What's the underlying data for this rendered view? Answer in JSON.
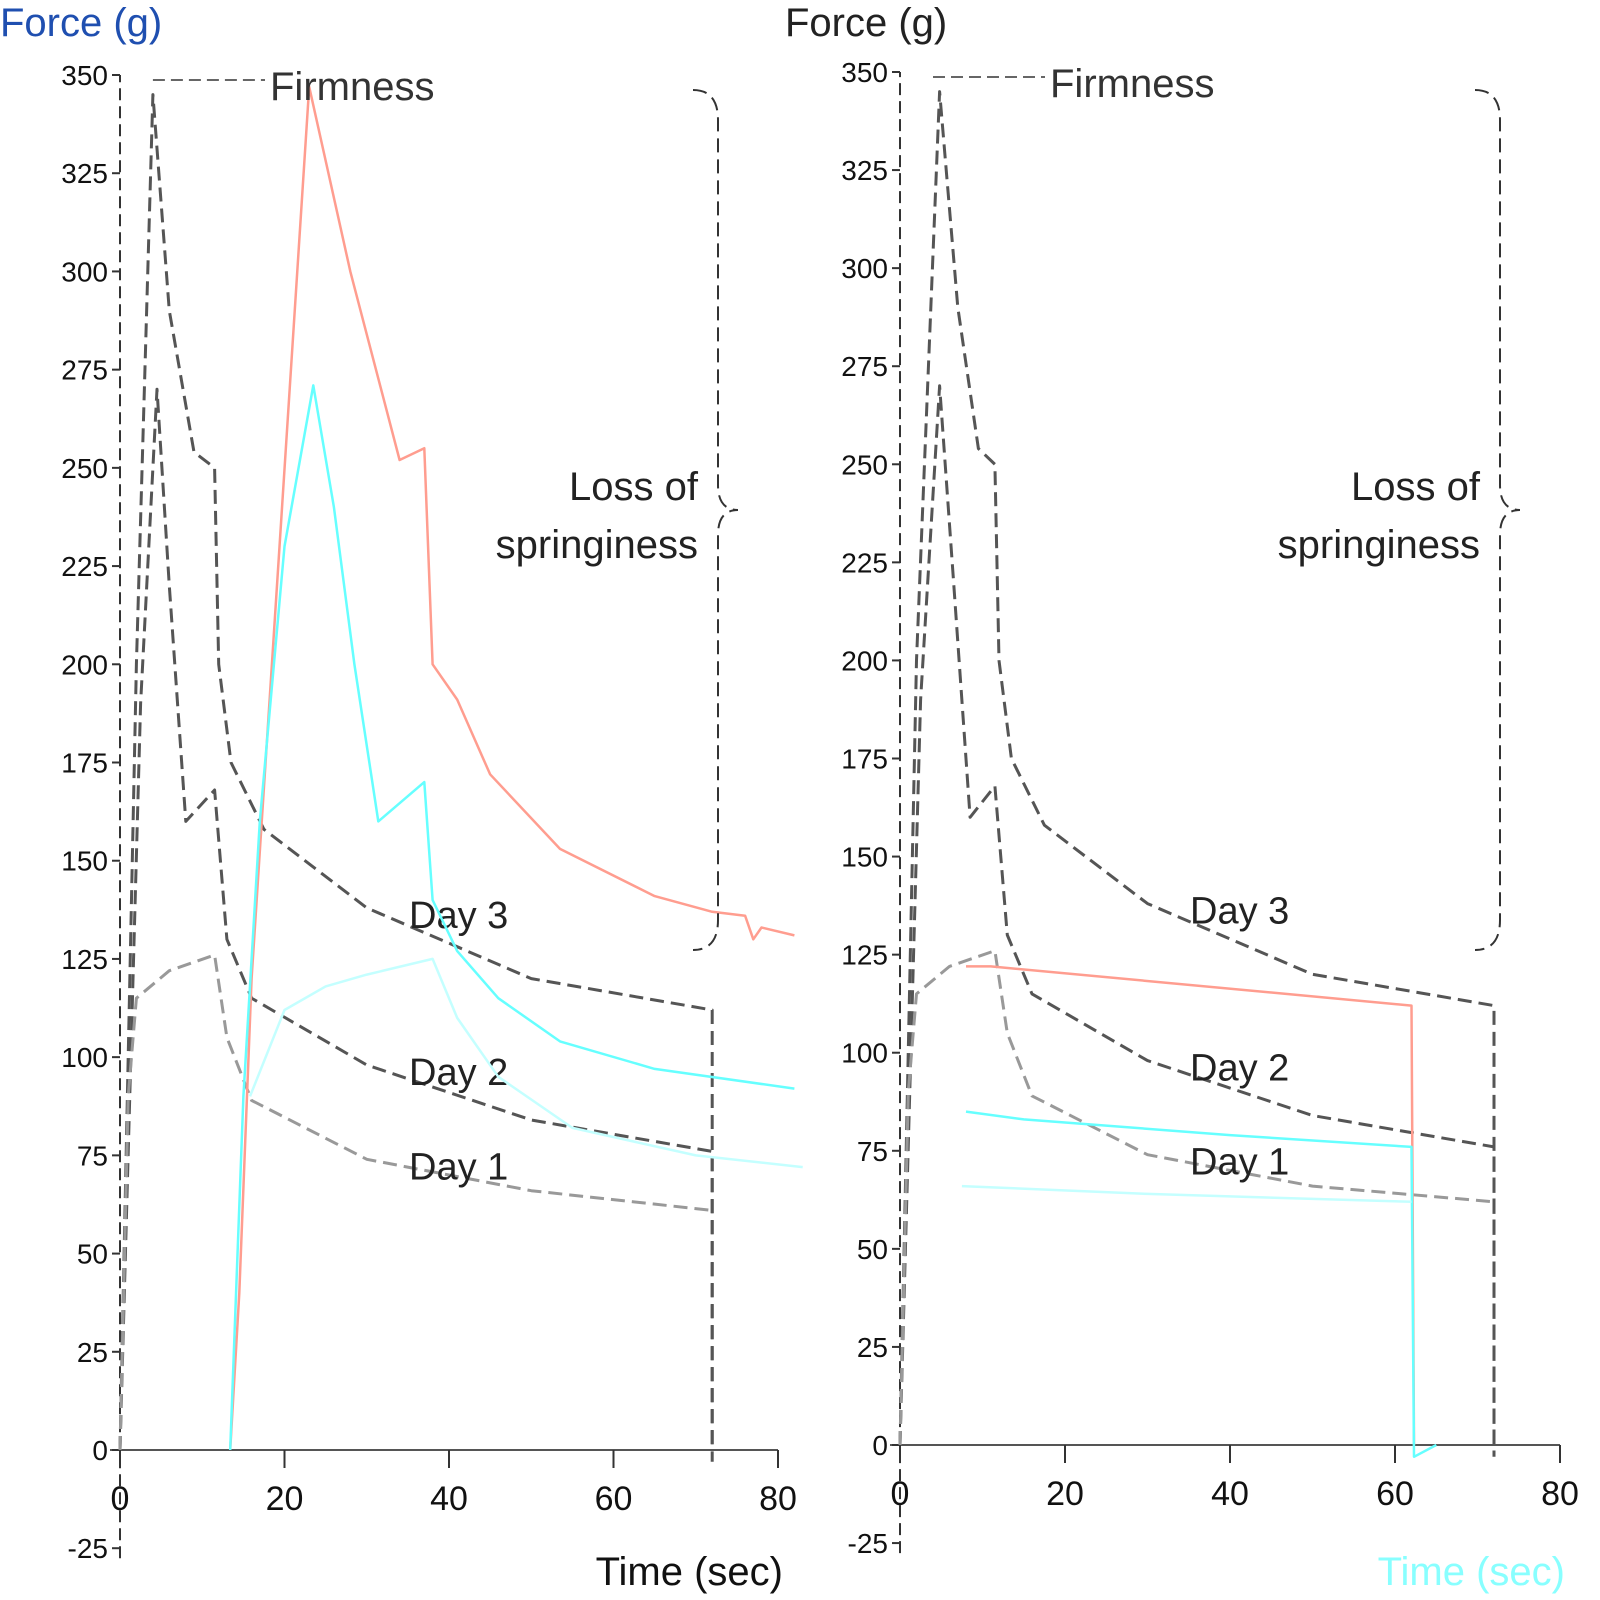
{
  "chart_data": [
    {
      "type": "line",
      "ylabel": "Force (g)",
      "xlabel": "Time (sec)",
      "xlim": [
        0,
        80
      ],
      "ylim": [
        -25,
        350
      ],
      "xticks": [
        0,
        20,
        40,
        60,
        80
      ],
      "yticks": [
        -25,
        0,
        25,
        50,
        75,
        100,
        125,
        150,
        175,
        200,
        225,
        250,
        275,
        300,
        325,
        350
      ],
      "annotations": {
        "firmness": "Firmness",
        "springiness": [
          "Loss of",
          "springiness"
        ]
      },
      "series": [
        {
          "name": "Day 3",
          "color": "#555555",
          "dash": true,
          "points": [
            [
              0,
              0
            ],
            [
              2,
              200
            ],
            [
              4,
              345
            ],
            [
              6,
              290
            ],
            [
              9,
              254
            ],
            [
              11.5,
              250
            ],
            [
              12,
              200
            ],
            [
              13.5,
              175
            ],
            [
              17.5,
              158
            ],
            [
              30,
              138
            ],
            [
              50,
              120
            ],
            [
              72,
              112
            ],
            [
              72,
              0
            ]
          ]
        },
        {
          "name": "Day 2",
          "color": "#555555",
          "dash": true,
          "points": [
            [
              0,
              0
            ],
            [
              2.5,
              190
            ],
            [
              4.5,
              270
            ],
            [
              6,
              220
            ],
            [
              8,
              160
            ],
            [
              11.5,
              168
            ],
            [
              13,
              130
            ],
            [
              16,
              115
            ],
            [
              30,
              98
            ],
            [
              50,
              84
            ],
            [
              72,
              76
            ],
            [
              72,
              -3
            ]
          ]
        },
        {
          "name": "Day 1",
          "color": "#999999",
          "dash": true,
          "points": [
            [
              0,
              0
            ],
            [
              1,
              90
            ],
            [
              2,
              115
            ],
            [
              6,
              122
            ],
            [
              11.5,
              126
            ],
            [
              13,
              105
            ],
            [
              16,
              89
            ],
            [
              30,
              74
            ],
            [
              50,
              66
            ],
            [
              72,
              61
            ]
          ]
        },
        {
          "color": "#ff9d8f",
          "dash": false,
          "points": [
            [
              13.4,
              0
            ],
            [
              14.5,
              40
            ],
            [
              16,
              120
            ],
            [
              23,
              347
            ],
            [
              28,
              300
            ],
            [
              34,
              252
            ],
            [
              37,
              255
            ],
            [
              38,
              200
            ],
            [
              41,
              191
            ],
            [
              45,
              172
            ],
            [
              53.5,
              153
            ],
            [
              65,
              141
            ],
            [
              72,
              137
            ],
            [
              76,
              136
            ],
            [
              77,
              130
            ],
            [
              78,
              133
            ],
            [
              82,
              131
            ]
          ]
        },
        {
          "color": "#66ffff",
          "dash": false,
          "points": [
            [
              13.4,
              0
            ],
            [
              15,
              90
            ],
            [
              17,
              160
            ],
            [
              20,
              230
            ],
            [
              23.5,
              271
            ],
            [
              26,
              240
            ],
            [
              28.5,
              200
            ],
            [
              31.4,
              160
            ],
            [
              37,
              170
            ],
            [
              38,
              140
            ],
            [
              41,
              127
            ],
            [
              46,
              115
            ],
            [
              53.5,
              104
            ],
            [
              65,
              97
            ],
            [
              82,
              92
            ]
          ]
        },
        {
          "color": "#c4ffff",
          "dash": false,
          "points": [
            [
              15.8,
              90
            ],
            [
              20,
              112
            ],
            [
              25,
              118
            ],
            [
              30,
              121
            ],
            [
              38,
              125
            ],
            [
              41,
              110
            ],
            [
              46,
              95
            ],
            [
              55,
              82
            ],
            [
              70,
              75
            ],
            [
              83,
              72
            ]
          ]
        }
      ]
    },
    {
      "type": "line",
      "ylabel": "Force (g)",
      "xlabel": "Time (sec)",
      "xlim": [
        0,
        80
      ],
      "ylim": [
        -25,
        350
      ],
      "xticks": [
        0,
        20,
        40,
        60,
        80
      ],
      "yticks": [
        -25,
        0,
        25,
        50,
        75,
        100,
        125,
        150,
        175,
        200,
        225,
        250,
        275,
        300,
        325,
        350
      ],
      "annotations": {
        "firmness": "Firmness",
        "springiness": [
          "Loss of",
          "springiness"
        ]
      },
      "series": [
        {
          "name": "Day 3",
          "color": "#555555",
          "dash": true,
          "points": [
            [
              0,
              0
            ],
            [
              2,
              200
            ],
            [
              4.8,
              345
            ],
            [
              7,
              290
            ],
            [
              9.5,
              254
            ],
            [
              11.5,
              250
            ],
            [
              12,
              200
            ],
            [
              13.5,
              175
            ],
            [
              17.5,
              158
            ],
            [
              30,
              138
            ],
            [
              50,
              120
            ],
            [
              72,
              112
            ],
            [
              72,
              0
            ]
          ]
        },
        {
          "name": "Day 2",
          "color": "#555555",
          "dash": true,
          "points": [
            [
              0,
              0
            ],
            [
              2.5,
              190
            ],
            [
              4.8,
              270
            ],
            [
              6.5,
              220
            ],
            [
              8.5,
              160
            ],
            [
              11.5,
              168
            ],
            [
              13,
              130
            ],
            [
              16,
              115
            ],
            [
              30,
              98
            ],
            [
              50,
              84
            ],
            [
              72,
              76
            ],
            [
              72,
              -3
            ]
          ]
        },
        {
          "name": "Day 1",
          "color": "#999999",
          "dash": true,
          "points": [
            [
              0,
              0
            ],
            [
              1,
              90
            ],
            [
              2,
              115
            ],
            [
              6,
              122
            ],
            [
              11.5,
              126
            ],
            [
              13,
              105
            ],
            [
              16,
              89
            ],
            [
              30,
              74
            ],
            [
              50,
              66
            ],
            [
              72,
              62
            ]
          ]
        },
        {
          "color": "#ff9d8f",
          "dash": false,
          "points": [
            [
              8,
              122
            ],
            [
              11,
              122
            ],
            [
              62,
              112
            ],
            [
              62.3,
              0
            ]
          ]
        },
        {
          "color": "#66ffff",
          "dash": false,
          "points": [
            [
              8,
              85
            ],
            [
              15,
              83
            ],
            [
              40,
              79
            ],
            [
              62,
              76
            ],
            [
              62.3,
              -3
            ],
            [
              65,
              0
            ]
          ]
        },
        {
          "color": "#c4ffff",
          "dash": false,
          "points": [
            [
              7.5,
              66
            ],
            [
              30,
              64
            ],
            [
              62,
              62
            ]
          ]
        }
      ]
    }
  ]
}
